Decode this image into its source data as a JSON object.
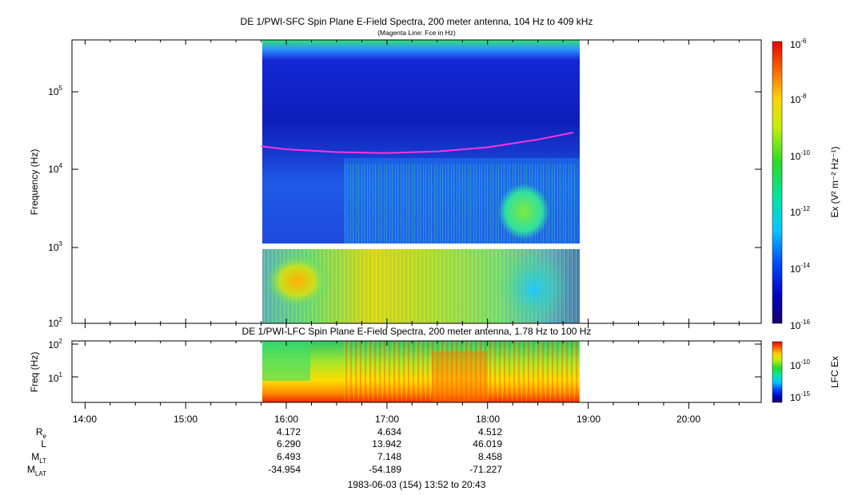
{
  "top_panel": {
    "title": "DE 1/PWI-SFC  Spin Plane E-Field Spectra, 200 meter antenna, 104 Hz to 409 kHz",
    "subtitle": "(Magenta Line: Fce in Hz)",
    "ylabel": "Frequency (Hz)",
    "colorbar_label": "Ex (V² m⁻² Hz⁻¹)",
    "y_ticks": [
      "10",
      "10",
      "10",
      "10",
      "10"
    ],
    "y_tick_exps": [
      "2",
      "3",
      "4",
      "5",
      ""
    ],
    "cbar_ticks": [
      "10",
      "10",
      "10",
      "10",
      "10",
      "10"
    ],
    "cbar_tick_exps": [
      "-6",
      "-8",
      "-10",
      "-12",
      "-14",
      "-16"
    ]
  },
  "bottom_panel": {
    "title": "DE 1/PWI-LFC  Spin Plane E-Field Spectra, 200 meter antenna, 1.78 Hz to 100 Hz",
    "ylabel": "Freq (Hz)",
    "colorbar_label": "LFC Ex",
    "y_ticks": [
      "10",
      "10"
    ],
    "y_tick_exps": [
      "2",
      "1"
    ],
    "cbar_ticks": [
      "10",
      "10"
    ],
    "cbar_tick_exps": [
      "-10",
      "-15"
    ]
  },
  "x_axis": {
    "ticks": [
      "14:00",
      "15:00",
      "16:00",
      "17:00",
      "18:00",
      "19:00",
      "20:00"
    ]
  },
  "ephemeris": {
    "rows": [
      {
        "label": "R",
        "sub": "e",
        "values": [
          "4.172",
          "4.634",
          "4.512"
        ]
      },
      {
        "label": "L",
        "sub": "",
        "values": [
          "6.290",
          "13.942",
          "46.019"
        ]
      },
      {
        "label": "M",
        "sub": "LT",
        "values": [
          "6.493",
          "7.148",
          "8.458"
        ]
      },
      {
        "label": "M",
        "sub": "LAT",
        "values": [
          "-34.954",
          "-54.189",
          "-71.227"
        ]
      }
    ]
  },
  "footer": "1983-06-03 (154) 13:52 to 20:43",
  "chart_data": [
    {
      "type": "heatmap",
      "title": "DE 1/PWI-SFC  Spin Plane E-Field Spectra, 200 meter antenna, 104 Hz to 409 kHz",
      "subtitle": "(Magenta Line: Fce in Hz)",
      "xlabel": "",
      "ylabel": "Frequency (Hz)",
      "x_ticks": [
        "14:00",
        "15:00",
        "16:00",
        "17:00",
        "18:00",
        "19:00",
        "20:00"
      ],
      "x_range_hours": [
        13.87,
        20.72
      ],
      "data_coverage_hours": [
        15.75,
        18.88
      ],
      "y_scale": "log",
      "y_range": [
        100,
        409000
      ],
      "colorbar": {
        "label": "Ex (V2 m-2 Hz-1)",
        "scale": "log",
        "range": [
          1e-16,
          1e-06
        ],
        "colormap": "rainbow"
      },
      "series": [
        {
          "name": "Fce in Hz",
          "color": "#ff33dd",
          "x": [
            15.75,
            16.0,
            16.5,
            17.0,
            17.5,
            18.0,
            18.5,
            18.85
          ],
          "y": [
            18000,
            16500,
            15200,
            14800,
            15500,
            17500,
            22000,
            27000
          ]
        }
      ]
    },
    {
      "type": "heatmap",
      "title": "DE 1/PWI-LFC  Spin Plane E-Field Spectra, 200 meter antenna, 1.78 Hz to 100 Hz",
      "xlabel": "",
      "ylabel": "Freq (Hz)",
      "x_ticks": [
        "14:00",
        "15:00",
        "16:00",
        "17:00",
        "18:00",
        "19:00",
        "20:00"
      ],
      "x_range_hours": [
        13.87,
        20.72
      ],
      "data_coverage_hours": [
        15.75,
        18.88
      ],
      "y_scale": "log",
      "y_range": [
        1.78,
        100
      ],
      "colorbar": {
        "label": "LFC Ex",
        "scale": "log",
        "colormap": "rainbow"
      }
    }
  ],
  "colors": {
    "fce_line": "#ff33dd",
    "no_data": "#ffffff"
  }
}
